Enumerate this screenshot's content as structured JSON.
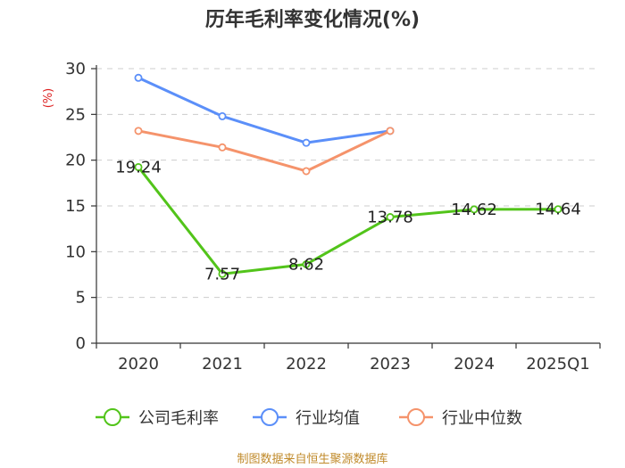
{
  "chart_data": {
    "type": "line",
    "title": "历年毛利率变化情况(%)",
    "ylabel": "(%)",
    "xlabel": "",
    "categories": [
      "2020",
      "2021",
      "2022",
      "2023",
      "2024",
      "2025Q1"
    ],
    "ylim": [
      0,
      30
    ],
    "yticks": [
      0,
      5,
      10,
      15,
      20,
      25,
      30
    ],
    "grid": true,
    "legend_position": "bottom",
    "series": [
      {
        "name": "公司毛利率",
        "color": "#52c41a",
        "values": [
          19.24,
          7.57,
          8.62,
          13.78,
          14.62,
          14.64
        ],
        "labels": [
          "19.24",
          "7.57",
          "8.62",
          "13.78",
          "14.62",
          "14.64"
        ]
      },
      {
        "name": "行业均值",
        "color": "#5b8ff9",
        "values": [
          29.0,
          24.8,
          21.9,
          23.2,
          null,
          null
        ]
      },
      {
        "name": "行业中位数",
        "color": "#f5936b",
        "values": [
          23.2,
          21.4,
          18.8,
          23.2,
          null,
          null
        ]
      }
    ]
  },
  "source": "制图数据来自恒生聚源数据库"
}
